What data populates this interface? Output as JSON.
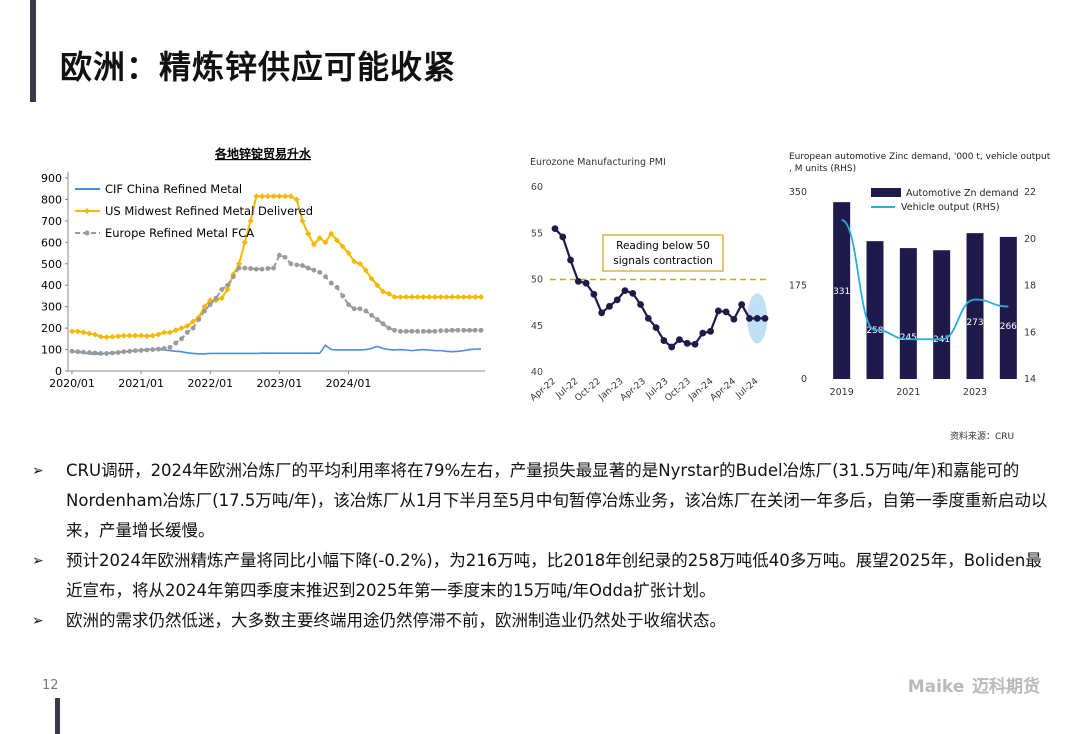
{
  "title": "欧洲：精炼锌供应可能收紧",
  "page_number": "12",
  "logo": {
    "brand": "Maike",
    "cn": "迈科期货"
  },
  "source": "资料来源：CRU",
  "chart_data": [
    {
      "type": "line",
      "title": "各地锌锭贸易升水",
      "x_tick_labels": [
        "2020/01",
        "2021/01",
        "2022/01",
        "2023/01",
        "2024/01"
      ],
      "ylim": [
        0,
        900
      ],
      "y_ticks": [
        0,
        100,
        200,
        300,
        400,
        500,
        600,
        700,
        800,
        900
      ],
      "legend_position": "top-left",
      "series": [
        {
          "name": "CIF China Refined Metal",
          "color": "#4a8fd8",
          "values": [
            90,
            88,
            85,
            80,
            78,
            80,
            82,
            85,
            88,
            90,
            92,
            95,
            98,
            100,
            102,
            100,
            98,
            95,
            92,
            90,
            85,
            82,
            80,
            80,
            82,
            82,
            82,
            82,
            82,
            82,
            82,
            82,
            82,
            83,
            83,
            83,
            83,
            83,
            83,
            83,
            83,
            83,
            83,
            83,
            120,
            100,
            98,
            98,
            98,
            98,
            98,
            100,
            105,
            115,
            105,
            100,
            98,
            100,
            98,
            95,
            98,
            100,
            98,
            95,
            95,
            92,
            90,
            92,
            95,
            100,
            102,
            103
          ]
        },
        {
          "name": "US Midwest Refined Metal Delivered",
          "color": "#f5b800",
          "values": [
            185,
            185,
            180,
            175,
            170,
            160,
            158,
            160,
            162,
            165,
            165,
            165,
            165,
            163,
            165,
            170,
            180,
            180,
            190,
            200,
            210,
            230,
            250,
            300,
            330,
            330,
            340,
            380,
            450,
            500,
            600,
            700,
            815,
            815,
            815,
            815,
            815,
            815,
            815,
            800,
            700,
            640,
            590,
            620,
            600,
            640,
            610,
            580,
            550,
            510,
            500,
            470,
            430,
            400,
            370,
            360,
            345,
            345,
            345,
            345,
            345,
            345,
            345,
            345,
            345,
            345,
            345,
            345,
            345,
            345,
            345,
            345
          ]
        },
        {
          "name": "Europe Refined Metal FCA",
          "color": "#9a9a9a",
          "values": [
            92,
            90,
            88,
            86,
            84,
            82,
            82,
            84,
            86,
            90,
            92,
            95,
            96,
            98,
            100,
            102,
            105,
            110,
            130,
            150,
            180,
            200,
            240,
            280,
            310,
            340,
            380,
            400,
            440,
            480,
            480,
            478,
            475,
            475,
            478,
            480,
            540,
            530,
            500,
            495,
            492,
            480,
            470,
            460,
            440,
            410,
            390,
            350,
            310,
            290,
            290,
            280,
            260,
            240,
            220,
            200,
            190,
            185,
            185,
            185,
            185,
            185,
            185,
            185,
            188,
            188,
            190,
            190,
            190,
            190,
            190,
            190
          ]
        }
      ]
    },
    {
      "type": "line",
      "title": "Eurozone Manufacturing PMI",
      "x_tick_labels": [
        "Apr-22",
        "Jul-22",
        "Oct-22",
        "Jan-23",
        "Apr-23",
        "Jul-23",
        "Oct-23",
        "Jan-24",
        "Apr-24",
        "Jul-24"
      ],
      "ylim": [
        40,
        60
      ],
      "y_ticks": [
        40,
        45,
        50,
        55,
        60
      ],
      "reference_line": 50,
      "annotation": "Reading below 50 signals contraction",
      "series": [
        {
          "name": "",
          "color": "#1e1b4b",
          "values": [
            55.5,
            54.6,
            52.1,
            49.8,
            49.6,
            48.4,
            46.4,
            47.1,
            47.8,
            48.8,
            48.5,
            47.3,
            45.8,
            44.8,
            43.4,
            42.7,
            43.5,
            43.1,
            43.0,
            44.2,
            44.4,
            46.6,
            46.5,
            45.7,
            47.3,
            45.8,
            45.8,
            45.8
          ]
        }
      ]
    },
    {
      "type": "bar",
      "title": "European automotive Zinc demand, '000 t, vehicle output, M units (RHS)",
      "categories": [
        "2019",
        "2020",
        "2021",
        "2022",
        "2023",
        "2024"
      ],
      "x_tick_labels": [
        "2019",
        "2021",
        "2023"
      ],
      "ylim": [
        0,
        350
      ],
      "y_ticks": [
        0,
        175,
        350
      ],
      "y2lim": [
        14,
        22
      ],
      "y2_ticks": [
        14,
        16,
        18,
        20,
        22
      ],
      "legend_position": "top-right",
      "series": [
        {
          "name": "Automotive Zn demand",
          "color": "#1e1b4b",
          "values": [
            331,
            258,
            245,
            241,
            273,
            266
          ]
        },
        {
          "name": "Vehicle output (RHS)",
          "color": "#29aee0",
          "axis": "right",
          "values": [
            20.8,
            16.1,
            15.7,
            15.7,
            17.4,
            17.1
          ]
        }
      ]
    }
  ],
  "bullets": [
    "CRU调研，2024年欧洲冶炼厂的平均利用率将在79%左右，产量损失最显著的是Nyrstar的Budel冶炼厂(31.5万吨/年)和嘉能可的Nordenham冶炼厂(17.5万吨/年)，该冶炼厂从1月下半月至5月中旬暂停冶炼业务，该冶炼厂在关闭一年多后，自第一季度重新启动以来，产量增长缓慢。",
    "预计2024年欧洲精炼产量将同比小幅下降(-0.2%)，为216万吨，比2018年创纪录的258万吨低40多万吨。展望2025年，Boliden最近宣布，将从2024年第四季度末推迟到2025年第一季度末的15万吨/年Odda扩张计划。",
    "欧洲的需求仍然低迷，大多数主要终端用途仍然停滞不前，欧洲制造业仍然处于收缩状态。"
  ],
  "bullet_marker": "➢"
}
